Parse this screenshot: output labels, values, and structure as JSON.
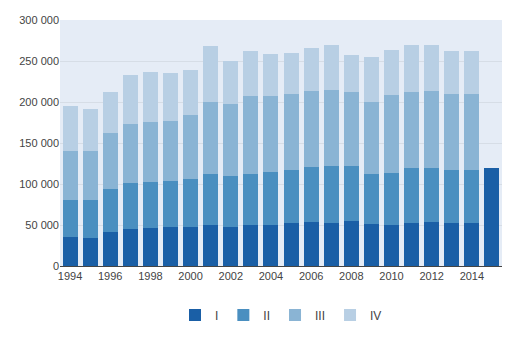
{
  "chart_data": {
    "type": "bar",
    "stacked": true,
    "categories": [
      "1994",
      null,
      "1996",
      null,
      "1998",
      null,
      "2000",
      null,
      "2002",
      null,
      "2004",
      null,
      "2006",
      null,
      "2008",
      null,
      "2010",
      null,
      "2012",
      null,
      "2014",
      null
    ],
    "series": [
      {
        "name": "I",
        "color": "#1a5fa6",
        "values": [
          35000,
          34000,
          42000,
          45000,
          46000,
          47000,
          48000,
          50000,
          48000,
          50000,
          50000,
          52000,
          54000,
          53000,
          55000,
          51000,
          50000,
          53000,
          54000,
          53000,
          53000,
          120000
        ]
      },
      {
        "name": "II",
        "color": "#4a8fc0",
        "values": [
          45000,
          46000,
          52000,
          56000,
          57000,
          57000,
          58000,
          62000,
          62000,
          62000,
          65000,
          65000,
          67000,
          69000,
          67000,
          61000,
          63000,
          66000,
          66000,
          64000,
          64000,
          0
        ]
      },
      {
        "name": "III",
        "color": "#8ab4d4",
        "values": [
          60000,
          60000,
          68000,
          72000,
          73000,
          73000,
          78000,
          88000,
          87000,
          95000,
          92000,
          93000,
          93000,
          93000,
          90000,
          88000,
          95000,
          93000,
          93000,
          93000,
          93000,
          0
        ]
      },
      {
        "name": "IV",
        "color": "#b8cfe4",
        "values": [
          55000,
          52000,
          50000,
          60000,
          60000,
          58000,
          55000,
          68000,
          53000,
          55000,
          52000,
          50000,
          52000,
          55000,
          45000,
          55000,
          55000,
          58000,
          56000,
          52000,
          52000,
          0
        ]
      }
    ],
    "ylim": [
      0,
      300000
    ],
    "yticks": [
      0,
      {
        "value": 50000,
        "label": "50 000"
      },
      {
        "value": 100000,
        "label": "100 000"
      },
      {
        "value": 150000,
        "label": "150 000"
      },
      {
        "value": 200000,
        "label": "200 000"
      },
      {
        "value": 250000,
        "label": "250 000"
      },
      {
        "value": 300000,
        "label": "300 000"
      }
    ],
    "grid": true,
    "legend": "bottom"
  }
}
